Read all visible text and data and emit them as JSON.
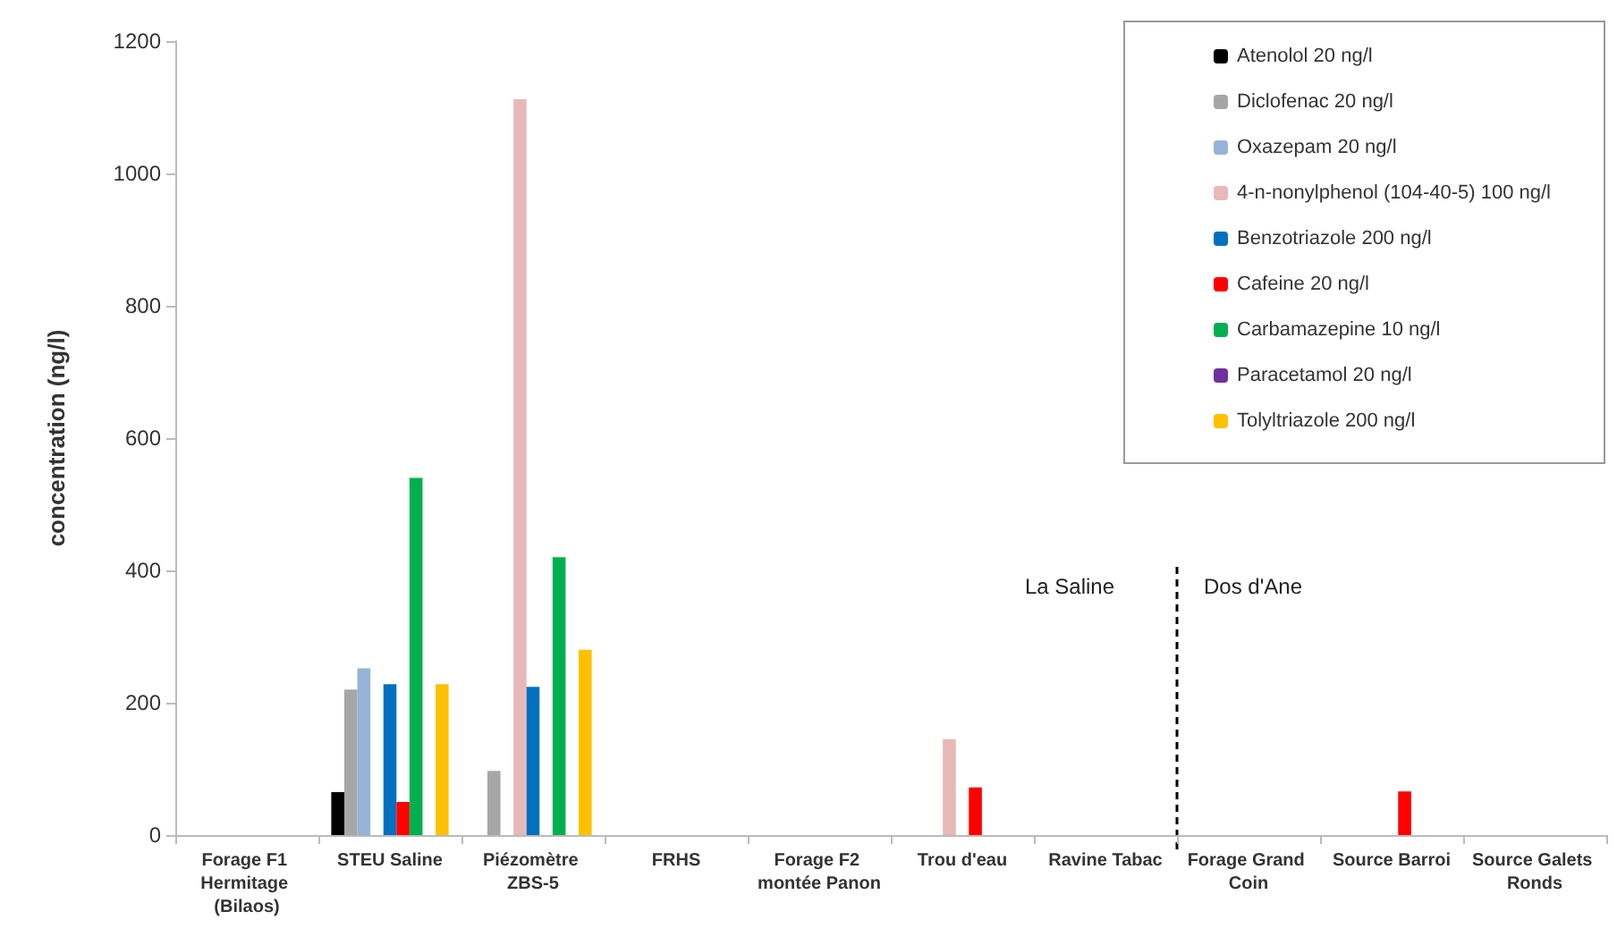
{
  "chart_data": {
    "type": "bar",
    "ylabel": "concentration (ng/l)",
    "categories": [
      "Forage F1 Hermitage (Bilaos)",
      "STEU Saline",
      "Piézomètre ZBS-5",
      "FRHS",
      "Forage F2 montée Panon",
      "Trou d'eau",
      "Ravine Tabac",
      "Forage Grand Coin",
      "Source Barroi",
      "Source Galets Ronds"
    ],
    "series": [
      {
        "name": "Atenolol 20 ng/l",
        "color": "#000000",
        "values": [
          0,
          65,
          0,
          0,
          0,
          0,
          0,
          0,
          0,
          0
        ]
      },
      {
        "name": "Diclofenac 20 ng/l",
        "color": "#a6a6a6",
        "values": [
          0,
          220,
          97,
          0,
          0,
          0,
          0,
          0,
          0,
          0
        ]
      },
      {
        "name": "Oxazepam 20 ng/l",
        "color": "#95b3d7",
        "values": [
          0,
          252,
          0,
          0,
          0,
          0,
          0,
          0,
          0,
          0
        ]
      },
      {
        "name": "4-n-nonylphenol (104-40-5) 100 ng/l",
        "color": "#e6b9b8",
        "values": [
          0,
          0,
          1112,
          0,
          0,
          145,
          0,
          0,
          0,
          0
        ]
      },
      {
        "name": "Benzotriazole 200 ng/l",
        "color": "#0070c0",
        "values": [
          0,
          228,
          224,
          0,
          0,
          0,
          0,
          0,
          0,
          0
        ]
      },
      {
        "name": "Cafeine 20 ng/l",
        "color": "#ff0000",
        "values": [
          0,
          50,
          0,
          0,
          0,
          72,
          0,
          0,
          66,
          0
        ]
      },
      {
        "name": "Carbamazepine 10 ng/l",
        "color": "#00b050",
        "values": [
          0,
          540,
          420,
          0,
          0,
          0,
          0,
          0,
          0,
          0
        ]
      },
      {
        "name": "Paracetamol 20 ng/l",
        "color": "#7030a0",
        "values": [
          0,
          0,
          0,
          0,
          0,
          0,
          0,
          0,
          0,
          0
        ]
      },
      {
        "name": "Tolyltriazole 200 ng/l",
        "color": "#ffc000",
        "values": [
          0,
          228,
          280,
          0,
          0,
          0,
          0,
          0,
          0,
          0
        ]
      }
    ],
    "ylim": [
      0,
      1200
    ],
    "yticks": [
      0,
      200,
      400,
      600,
      800,
      1000,
      1200
    ],
    "ref_lines": [
      {
        "axis": "x",
        "value": "Ravine Tabac",
        "line_style": "dashed",
        "color": "#000000"
      }
    ],
    "annotations": [
      "La Saline",
      "Dos d'Ane"
    ],
    "grid": false,
    "legend": "top right"
  }
}
